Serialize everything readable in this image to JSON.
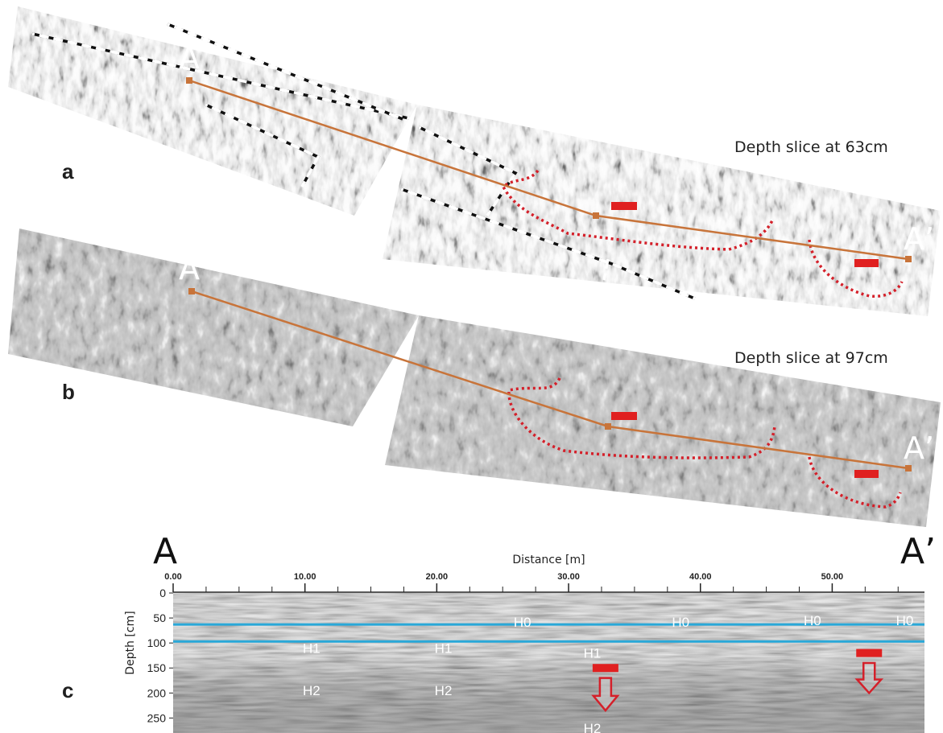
{
  "panels": {
    "a": {
      "letter": "a",
      "title": "Depth slice at 63cm"
    },
    "b": {
      "letter": "b",
      "title": "Depth slice at 97cm"
    },
    "c": {
      "letter": "c"
    }
  },
  "profile": {
    "start_label": "A",
    "end_label": "A’"
  },
  "colors": {
    "profile_line": "#c8743a",
    "anomaly_outline": "#d4202a",
    "anomaly_marker": "#e02020",
    "horizon_line": "#29a8d8",
    "boundary_dash": "#ffffff"
  },
  "chart_data": {
    "type": "radargram",
    "xlabel": "Distance [m]",
    "ylabel": "Depth [cm]",
    "xlim": [
      0,
      57
    ],
    "ylim": [
      0,
      280
    ],
    "x_ticks": [
      "0.00",
      "10.00",
      "20.00",
      "30.00",
      "40.00",
      "50.00"
    ],
    "x_tick_values": [
      0,
      10,
      20,
      30,
      40,
      50
    ],
    "y_ticks": [
      "0",
      "50",
      "100",
      "150",
      "200",
      "250"
    ],
    "y_tick_values": [
      0,
      50,
      100,
      150,
      200,
      250
    ],
    "horizon_lines_depth_cm": [
      63,
      97
    ],
    "horizon_labels": [
      {
        "text": "H0",
        "x": 26.5,
        "depth": 58
      },
      {
        "text": "H0",
        "x": 38.5,
        "depth": 58
      },
      {
        "text": "H0",
        "x": 48.5,
        "depth": 55
      },
      {
        "text": "H0",
        "x": 55.5,
        "depth": 55
      },
      {
        "text": "H1",
        "x": 10.5,
        "depth": 110
      },
      {
        "text": "H1",
        "x": 20.5,
        "depth": 110
      },
      {
        "text": "H1",
        "x": 31.8,
        "depth": 120
      },
      {
        "text": "H2",
        "x": 10.5,
        "depth": 195
      },
      {
        "text": "H2",
        "x": 20.5,
        "depth": 195
      },
      {
        "text": "H2",
        "x": 31.8,
        "depth": 270
      }
    ],
    "anomaly_markers": [
      {
        "x": 32.8,
        "depth": 150
      },
      {
        "x": 52.8,
        "depth": 120
      }
    ],
    "arrows": [
      {
        "x": 32.8,
        "depth_top": 170,
        "depth_bottom": 235
      },
      {
        "x": 52.8,
        "depth_top": 140,
        "depth_bottom": 200
      }
    ]
  }
}
